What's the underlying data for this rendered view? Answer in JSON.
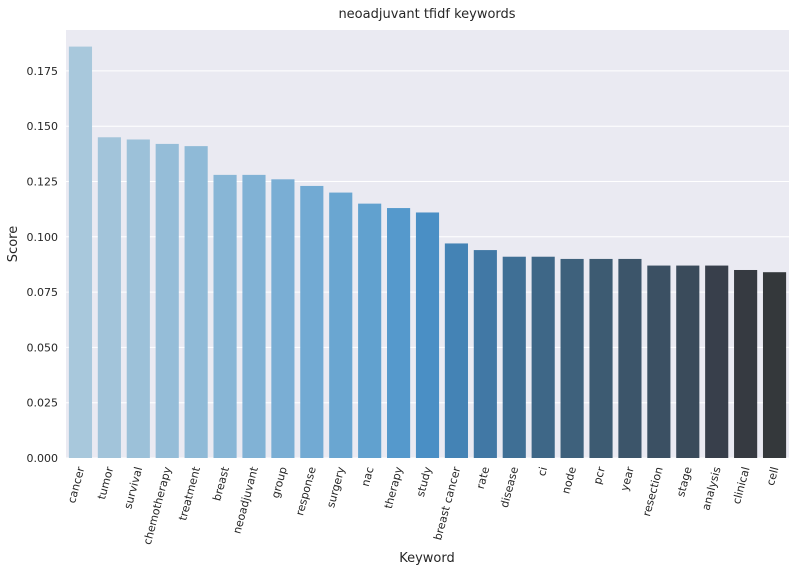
{
  "chart_data": {
    "type": "bar",
    "title": "neoadjuvant tfidf keywords",
    "xlabel": "Keyword",
    "ylabel": "Score",
    "ylim": [
      0,
      0.1935
    ],
    "yticks": [
      "0.000",
      "0.025",
      "0.050",
      "0.075",
      "0.100",
      "0.125",
      "0.150",
      "0.175"
    ],
    "grid": true,
    "categories": [
      "cancer",
      "tumor",
      "survival",
      "chemotherapy",
      "treatment",
      "breast",
      "neoadjuvant",
      "group",
      "response",
      "surgery",
      "nac",
      "therapy",
      "study",
      "breast cancer",
      "rate",
      "disease",
      "ci",
      "node",
      "pcr",
      "year",
      "resection",
      "stage",
      "analysis",
      "clinical",
      "cell"
    ],
    "values": [
      0.186,
      0.145,
      0.144,
      0.142,
      0.141,
      0.128,
      0.128,
      0.126,
      0.123,
      0.12,
      0.115,
      0.113,
      0.111,
      0.097,
      0.094,
      0.091,
      0.091,
      0.09,
      0.09,
      0.09,
      0.087,
      0.087,
      0.087,
      0.085,
      0.084
    ],
    "colors": [
      "#a8c8dc",
      "#a2c4da",
      "#9cc1d9",
      "#95bdd8",
      "#8fbad7",
      "#88b6d6",
      "#81b2d5",
      "#7aaed4",
      "#72aad3",
      "#6aa6d1",
      "#61a1cf",
      "#5599cc",
      "#4a8fc5",
      "#4483b5",
      "#4178a5",
      "#3f6f95",
      "#3e6787",
      "#3e617c",
      "#3d5b72",
      "#3c556a",
      "#3b5063",
      "#3a4b5b",
      "#383f4b",
      "#363a41",
      "#34383b"
    ]
  }
}
